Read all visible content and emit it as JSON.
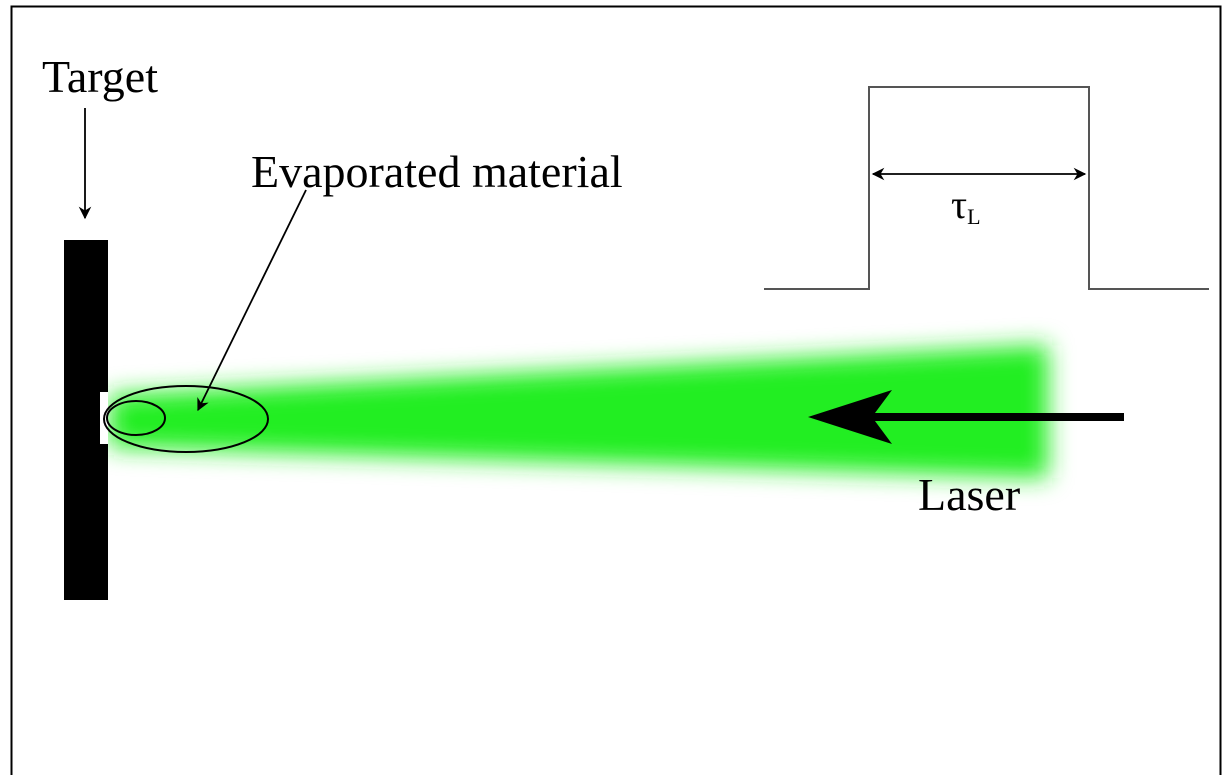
{
  "labels": {
    "target": "Target",
    "evaporated": "Evaporated material",
    "laser": "Laser",
    "pulse_symbol": "τ",
    "pulse_subscript": "L"
  },
  "colors": {
    "beam": "#22ee22",
    "ink": "#000000",
    "pulse_line": "#555555",
    "frame": "#000000"
  }
}
